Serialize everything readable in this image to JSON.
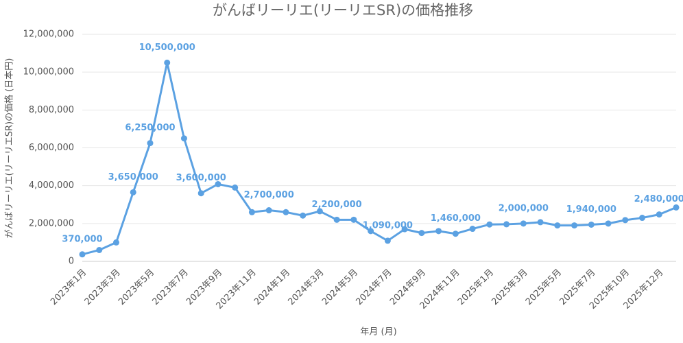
{
  "chart_data": {
    "type": "line",
    "title": "がんばリーリエ(リーリエSR)の価格推移",
    "x_label": "年月 (月)",
    "y_label": "がんばリーリエ(リーリエSR)の価格 (日本円)",
    "categories": [
      "2023年1月",
      null,
      "2023年3月",
      null,
      "2023年5月",
      null,
      "2023年7月",
      null,
      "2023年9月",
      null,
      "2023年11月",
      null,
      "2024年1月",
      null,
      "2024年3月",
      null,
      "2024年5月",
      null,
      "2024年7月",
      null,
      "2024年9月",
      null,
      "2024年11月",
      null,
      "2025年1月",
      null,
      "2025年3月",
      null,
      "2025年5月",
      null,
      "2025年7月",
      null,
      "2025年10月",
      null,
      "2025年12月",
      null
    ],
    "series": [
      {
        "name": "価格",
        "color": "#5ba1e2",
        "values": [
          370000,
          600000,
          1000000,
          3650000,
          6250000,
          10500000,
          6500000,
          3600000,
          4080000,
          3900000,
          2600000,
          2700000,
          2600000,
          2420000,
          2650000,
          2200000,
          2200000,
          1600000,
          1090000,
          1700000,
          1500000,
          1600000,
          1460000,
          1720000,
          1950000,
          1960000,
          2000000,
          2070000,
          1900000,
          1900000,
          1940000,
          2000000,
          2180000,
          2300000,
          2480000,
          2850000
        ],
        "value_labels": [
          "370,000",
          null,
          null,
          "3,650,000",
          "6,250,000",
          "10,500,000",
          null,
          "3,600,000",
          null,
          null,
          null,
          "2,700,000",
          null,
          null,
          null,
          "2,200,000",
          null,
          null,
          "1,090,000",
          null,
          null,
          null,
          "1,460,000",
          null,
          null,
          null,
          "2,000,000",
          null,
          null,
          null,
          "1,940,000",
          null,
          null,
          null,
          "2,480,000",
          null
        ]
      }
    ],
    "ylim": [
      0,
      12000000
    ],
    "yticks": [
      0,
      {
        "value": 2000000,
        "label": "2,000,000"
      },
      {
        "value": 4000000,
        "label": "4,000,000"
      },
      {
        "value": 6000000,
        "label": "6,000,000"
      },
      {
        "value": 8000000,
        "label": "8,000,000"
      },
      {
        "value": 10000000,
        "label": "10,000,000"
      },
      {
        "value": 12000000,
        "label": "12,000,000"
      }
    ],
    "grid": true
  }
}
